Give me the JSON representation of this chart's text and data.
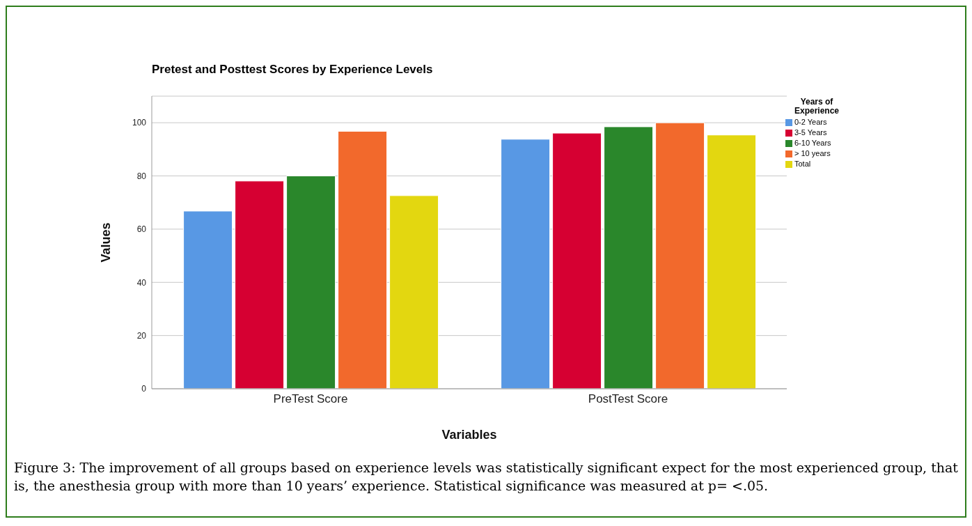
{
  "chart_data": {
    "type": "bar",
    "title": "Pretest and Posttest Scores by Experience Levels",
    "xlabel": "Variables",
    "ylabel": "Values",
    "legend_title": "Years of Experience",
    "categories": [
      "PreTest Score",
      "PostTest Score"
    ],
    "series": [
      {
        "name": "0-2 Years",
        "color": "#5898e4",
        "values": [
          66.8,
          93.8
        ]
      },
      {
        "name": "3-5 Years",
        "color": "#d60032",
        "values": [
          78.1,
          96.1
        ]
      },
      {
        "name": "6-10 Years",
        "color": "#2a872b",
        "values": [
          80,
          98.5
        ]
      },
      {
        "name": "> 10 years",
        "color": "#f2692c",
        "values": [
          96.8,
          100
        ]
      },
      {
        "name": "Total",
        "color": "#e3d710",
        "values": [
          72.6,
          95.4
        ]
      }
    ],
    "ylim": [
      0,
      110
    ],
    "yticks": [
      0,
      20,
      40,
      60,
      80,
      100
    ],
    "grid": "y",
    "legend": "top right",
    "annotations": [
      "Figure 3: The improvement of all groups based on experience levels was statistically significant expect for the most experienced group, that is, the anesthesia group with more than 10 years’ experience. Statistical significance was measured at p= <.05."
    ]
  }
}
